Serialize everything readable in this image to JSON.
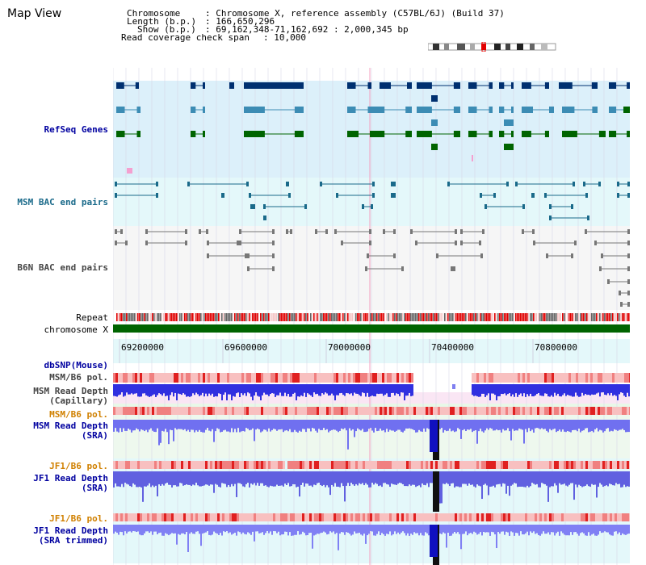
{
  "title": "Map View",
  "info": {
    "chromosome_label": "Chromosome",
    "chromosome_value": ": Chromosome X, reference assembly (C57BL/6J) (Build 37)",
    "length_label": "Length (b.p.)",
    "length_value": ": 166,650,296",
    "show_label": "Show (b.p.)",
    "show_value": ": 69,162,348-71,162,692 : 2,000,345 bp",
    "coverage_label": "Read coverage check span",
    "coverage_value": ": 10,000"
  },
  "tracks": {
    "refseq": "RefSeq Genes",
    "msm_bac": "MSM BAC end pairs",
    "b6n_bac": "B6N BAC end pairs",
    "repeat": "Repeat",
    "chromosome": "chromosome X",
    "dbsnp": "dbSNP(Mouse)",
    "msm_b6_pol_1": "MSM/B6 pol.",
    "msm_read_depth_cap_1": "MSM Read Depth",
    "msm_read_depth_cap_2": "(Capillary)",
    "msm_b6_pol_2": "MSM/B6 pol.",
    "msm_read_depth_sra_1": "MSM Read Depth",
    "msm_read_depth_sra_2": "(SRA)",
    "jf1_b6_pol_1": "JF1/B6 pol.",
    "jf1_read_depth_sra_1": "JF1 Read Depth",
    "jf1_read_depth_sra_2": "(SRA)",
    "jf1_b6_pol_2": "JF1/B6 pol.",
    "jf1_read_depth_trim_1": "JF1 Read Depth",
    "jf1_read_depth_trim_2": "(SRA trimmed)"
  },
  "axis": {
    "tick_labels": [
      "69200000",
      "69600000",
      "70000000",
      "70400000",
      "70800000"
    ]
  },
  "colors": {
    "refseq_bg": "#dcf0fa",
    "bac_msm_bg": "#e4f8fa",
    "gene_dark": "#003070",
    "gene_mid": "#3c8cb4",
    "gene_green": "#006400",
    "chromosome_bar": "#006400",
    "depth_blue": "#7070f0",
    "depth_dark": "#1010d0",
    "pol_pink": "#f4a0a0"
  }
}
